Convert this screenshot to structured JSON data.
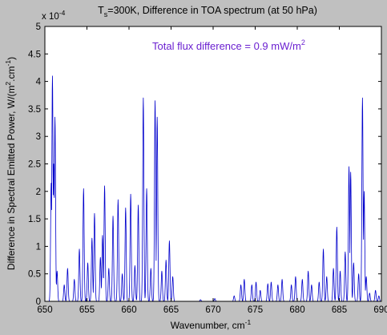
{
  "chart_data": {
    "type": "line",
    "title_prefix": "T",
    "title_sub": "s",
    "title_rest": "=300K, Difference in TOA spectrum (at 50 hPa)",
    "xlabel": "Wavenumber, cm",
    "xlabel_sup": "-1",
    "ylabel": "Difference in Spectral Emitted Power, W/(m",
    "ylabel_sup1": "2",
    "ylabel_mid": ".cm",
    "ylabel_sup2": "-1",
    "ylabel_end": ")",
    "exponent_base": "x 10",
    "exponent_power": "-4",
    "annotation": "Total flux difference = 0.9 mW/m",
    "annotation_sup": "2",
    "xlim": [
      650,
      690
    ],
    "ylim": [
      0,
      5
    ],
    "x_ticks": [
      "650",
      "655",
      "660",
      "665",
      "670",
      "675",
      "680",
      "685",
      "690"
    ],
    "y_ticks": [
      "0",
      "0.5",
      "1",
      "1.5",
      "2",
      "2.5",
      "3",
      "3.5",
      "4",
      "4.5",
      "5"
    ],
    "grid": false,
    "colors": {
      "line": "#0000cc",
      "annotation": "#6a1fd0",
      "axes": "#000000",
      "figure_bg": "#c0c0c0",
      "plot_bg": "#ffffff"
    },
    "peaks": [
      {
        "x": 650.9,
        "y": 4.1
      },
      {
        "x": 651.2,
        "y": 3.35
      },
      {
        "x": 651.05,
        "y": 2.5
      },
      {
        "x": 650.75,
        "y": 2.15
      },
      {
        "x": 651.45,
        "y": 0.55
      },
      {
        "x": 652.3,
        "y": 0.3
      },
      {
        "x": 652.7,
        "y": 0.6
      },
      {
        "x": 653.5,
        "y": 0.4
      },
      {
        "x": 654.1,
        "y": 0.95
      },
      {
        "x": 654.6,
        "y": 2.05
      },
      {
        "x": 655.1,
        "y": 0.7
      },
      {
        "x": 655.6,
        "y": 1.15
      },
      {
        "x": 655.9,
        "y": 1.6
      },
      {
        "x": 656.6,
        "y": 0.8
      },
      {
        "x": 656.85,
        "y": 1.2
      },
      {
        "x": 657.1,
        "y": 2.1
      },
      {
        "x": 657.6,
        "y": 0.6
      },
      {
        "x": 658.1,
        "y": 1.55
      },
      {
        "x": 658.7,
        "y": 1.85
      },
      {
        "x": 659.2,
        "y": 0.5
      },
      {
        "x": 659.6,
        "y": 1.7
      },
      {
        "x": 660.2,
        "y": 1.95
      },
      {
        "x": 660.7,
        "y": 0.65
      },
      {
        "x": 661.1,
        "y": 1.75
      },
      {
        "x": 661.7,
        "y": 3.7
      },
      {
        "x": 662.1,
        "y": 2.05
      },
      {
        "x": 662.6,
        "y": 0.6
      },
      {
        "x": 663.1,
        "y": 3.65
      },
      {
        "x": 663.35,
        "y": 3.35
      },
      {
        "x": 663.9,
        "y": 0.55
      },
      {
        "x": 664.4,
        "y": 0.75
      },
      {
        "x": 664.8,
        "y": 1.1
      },
      {
        "x": 665.2,
        "y": 0.45
      },
      {
        "x": 668.5,
        "y": 0.03
      },
      {
        "x": 670.2,
        "y": 0.05
      },
      {
        "x": 672.5,
        "y": 0.1
      },
      {
        "x": 673.3,
        "y": 0.3
      },
      {
        "x": 673.7,
        "y": 0.4
      },
      {
        "x": 674.6,
        "y": 0.3
      },
      {
        "x": 675.1,
        "y": 0.35
      },
      {
        "x": 675.6,
        "y": 0.2
      },
      {
        "x": 676.5,
        "y": 0.32
      },
      {
        "x": 676.9,
        "y": 0.35
      },
      {
        "x": 677.7,
        "y": 0.3
      },
      {
        "x": 678.2,
        "y": 0.4
      },
      {
        "x": 679.3,
        "y": 0.3
      },
      {
        "x": 679.8,
        "y": 0.45
      },
      {
        "x": 680.6,
        "y": 0.4
      },
      {
        "x": 681.3,
        "y": 0.55
      },
      {
        "x": 681.7,
        "y": 0.3
      },
      {
        "x": 682.6,
        "y": 0.35
      },
      {
        "x": 683.1,
        "y": 0.95
      },
      {
        "x": 683.5,
        "y": 0.45
      },
      {
        "x": 684.3,
        "y": 0.6
      },
      {
        "x": 684.7,
        "y": 1.35
      },
      {
        "x": 685.1,
        "y": 0.55
      },
      {
        "x": 685.7,
        "y": 0.9
      },
      {
        "x": 686.15,
        "y": 2.45
      },
      {
        "x": 686.35,
        "y": 2.35
      },
      {
        "x": 686.7,
        "y": 0.7
      },
      {
        "x": 687.3,
        "y": 0.5
      },
      {
        "x": 687.75,
        "y": 3.7
      },
      {
        "x": 687.95,
        "y": 2.0
      },
      {
        "x": 688.2,
        "y": 0.45
      },
      {
        "x": 688.6,
        "y": 0.15
      },
      {
        "x": 689.3,
        "y": 0.2
      },
      {
        "x": 689.7,
        "y": 0.1
      }
    ]
  }
}
